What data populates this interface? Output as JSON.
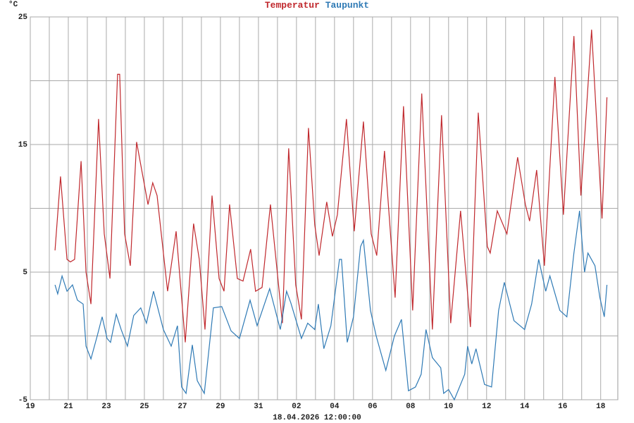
{
  "chart_data": {
    "type": "line",
    "ylabel": "°C",
    "xlabel": "18.04.2026 12:00:00",
    "xlim": [
      0,
      30.9
    ],
    "ylim": [
      -5,
      25
    ],
    "yticks": [
      -5,
      5,
      15,
      25
    ],
    "yminor": [
      0,
      10,
      20
    ],
    "xticks": [
      {
        "value": 0,
        "label": "19"
      },
      {
        "value": 2,
        "label": "21"
      },
      {
        "value": 4,
        "label": "23"
      },
      {
        "value": 6,
        "label": "25"
      },
      {
        "value": 8,
        "label": "27"
      },
      {
        "value": 10,
        "label": "29"
      },
      {
        "value": 12,
        "label": "31"
      },
      {
        "value": 14,
        "label": "02"
      },
      {
        "value": 16,
        "label": "04"
      },
      {
        "value": 18,
        "label": "06"
      },
      {
        "value": 20,
        "label": "08"
      },
      {
        "value": 22,
        "label": "10"
      },
      {
        "value": 24,
        "label": "12"
      },
      {
        "value": 26,
        "label": "14"
      },
      {
        "value": 28,
        "label": "16"
      },
      {
        "value": 30,
        "label": "18"
      }
    ],
    "xminor": [
      1,
      3,
      5,
      7,
      9,
      11,
      13,
      15,
      17,
      19,
      21,
      23,
      25,
      27,
      29
    ],
    "grid": true,
    "series": [
      {
        "name": "Temperatur",
        "color": "#c0282d",
        "x": [
          1.3,
          1.59,
          1.93,
          2.11,
          2.33,
          2.67,
          2.93,
          3.19,
          3.59,
          3.89,
          4.19,
          4.59,
          4.7,
          4.96,
          5.26,
          5.59,
          6.19,
          6.44,
          6.67,
          7.22,
          7.67,
          8.15,
          8.59,
          8.89,
          9.19,
          9.56,
          9.93,
          10.19,
          10.48,
          10.89,
          11.19,
          11.59,
          11.85,
          12.19,
          12.63,
          13.26,
          13.59,
          13.96,
          14.26,
          14.63,
          14.96,
          15.19,
          15.59,
          15.89,
          16.15,
          16.63,
          17.04,
          17.52,
          17.93,
          18.22,
          18.63,
          19.19,
          19.63,
          20.11,
          20.59,
          21.15,
          21.63,
          22.11,
          22.63,
          23.15,
          23.56,
          24.04,
          24.19,
          24.56,
          25.07,
          25.63,
          26.04,
          26.26,
          26.63,
          27.04,
          27.59,
          28.04,
          28.59,
          28.96,
          29.52,
          30.07,
          30.33
        ],
        "values": [
          6.7,
          12.5,
          6,
          5.8,
          6,
          13.7,
          5,
          2.5,
          17,
          8,
          4.5,
          20.5,
          20.5,
          8,
          5.5,
          15.2,
          10.3,
          12,
          11,
          3.5,
          8.2,
          -0.5,
          8.8,
          6,
          0.5,
          11,
          4.5,
          3.5,
          10.3,
          4.5,
          4.3,
          6.8,
          3.5,
          3.8,
          10.3,
          1,
          14.7,
          4,
          1.3,
          16.3,
          8.7,
          6.3,
          10.5,
          7.8,
          9.5,
          17,
          8.2,
          16.8,
          8,
          6.3,
          14.5,
          3,
          18,
          2,
          19,
          0.5,
          17.3,
          1,
          9.8,
          0.7,
          17.5,
          7,
          6.5,
          9.8,
          8,
          14,
          10.3,
          9,
          13,
          5.5,
          20.3,
          9.5,
          23.5,
          11,
          24,
          9.2,
          18.7
        ]
      },
      {
        "name": "Taupunkt",
        "color": "#2f7ab5",
        "x": [
          1.3,
          1.44,
          1.67,
          1.93,
          2.22,
          2.48,
          2.78,
          2.93,
          3.19,
          3.52,
          3.78,
          4.04,
          4.22,
          4.52,
          4.78,
          5.11,
          5.44,
          5.81,
          6.11,
          6.48,
          7.0,
          7.41,
          7.74,
          7.96,
          8.19,
          8.52,
          8.78,
          9.15,
          9.63,
          10.07,
          10.56,
          11.0,
          11.56,
          11.93,
          12.59,
          13.15,
          13.48,
          13.7,
          14.26,
          14.59,
          14.96,
          15.15,
          15.44,
          15.81,
          16.26,
          16.37,
          16.67,
          17.0,
          17.37,
          17.52,
          17.89,
          18.19,
          18.7,
          19.15,
          19.52,
          19.89,
          20.26,
          20.56,
          20.81,
          21.15,
          21.59,
          21.74,
          22.0,
          22.3,
          22.85,
          23.0,
          23.22,
          23.44,
          23.89,
          24.26,
          24.63,
          24.93,
          25.44,
          26.0,
          26.37,
          26.74,
          27.11,
          27.33,
          27.85,
          28.22,
          28.59,
          28.89,
          29.15,
          29.33,
          29.7,
          29.96,
          30.19,
          30.33
        ],
        "values": [
          4,
          3.3,
          4.7,
          3.5,
          4,
          2.8,
          2.5,
          -0.8,
          -1.8,
          0,
          1.5,
          -0.2,
          -0.5,
          1.7,
          0.5,
          -0.8,
          1.6,
          2.2,
          1,
          3.5,
          0.5,
          -0.8,
          0.8,
          -4,
          -4.5,
          -0.7,
          -3.5,
          -4.5,
          2.2,
          2.3,
          0.4,
          -0.2,
          2.8,
          0.8,
          3.7,
          0.5,
          3.5,
          2.6,
          -0.2,
          1,
          0.5,
          2.5,
          -1,
          0.8,
          6,
          6,
          -0.5,
          1.5,
          7,
          7.5,
          2,
          0,
          -2.7,
          0,
          1.3,
          -4.3,
          -4,
          -3,
          0.5,
          -1.7,
          -2.5,
          -4.5,
          -4.2,
          -5,
          -3,
          -0.8,
          -2.2,
          -1,
          -3.8,
          -4,
          2,
          4.2,
          1.2,
          0.5,
          2.5,
          6,
          3.5,
          4.7,
          2,
          1.5,
          6.5,
          9.8,
          5,
          6.5,
          5.5,
          3,
          1.5,
          4
        ]
      }
    ]
  }
}
